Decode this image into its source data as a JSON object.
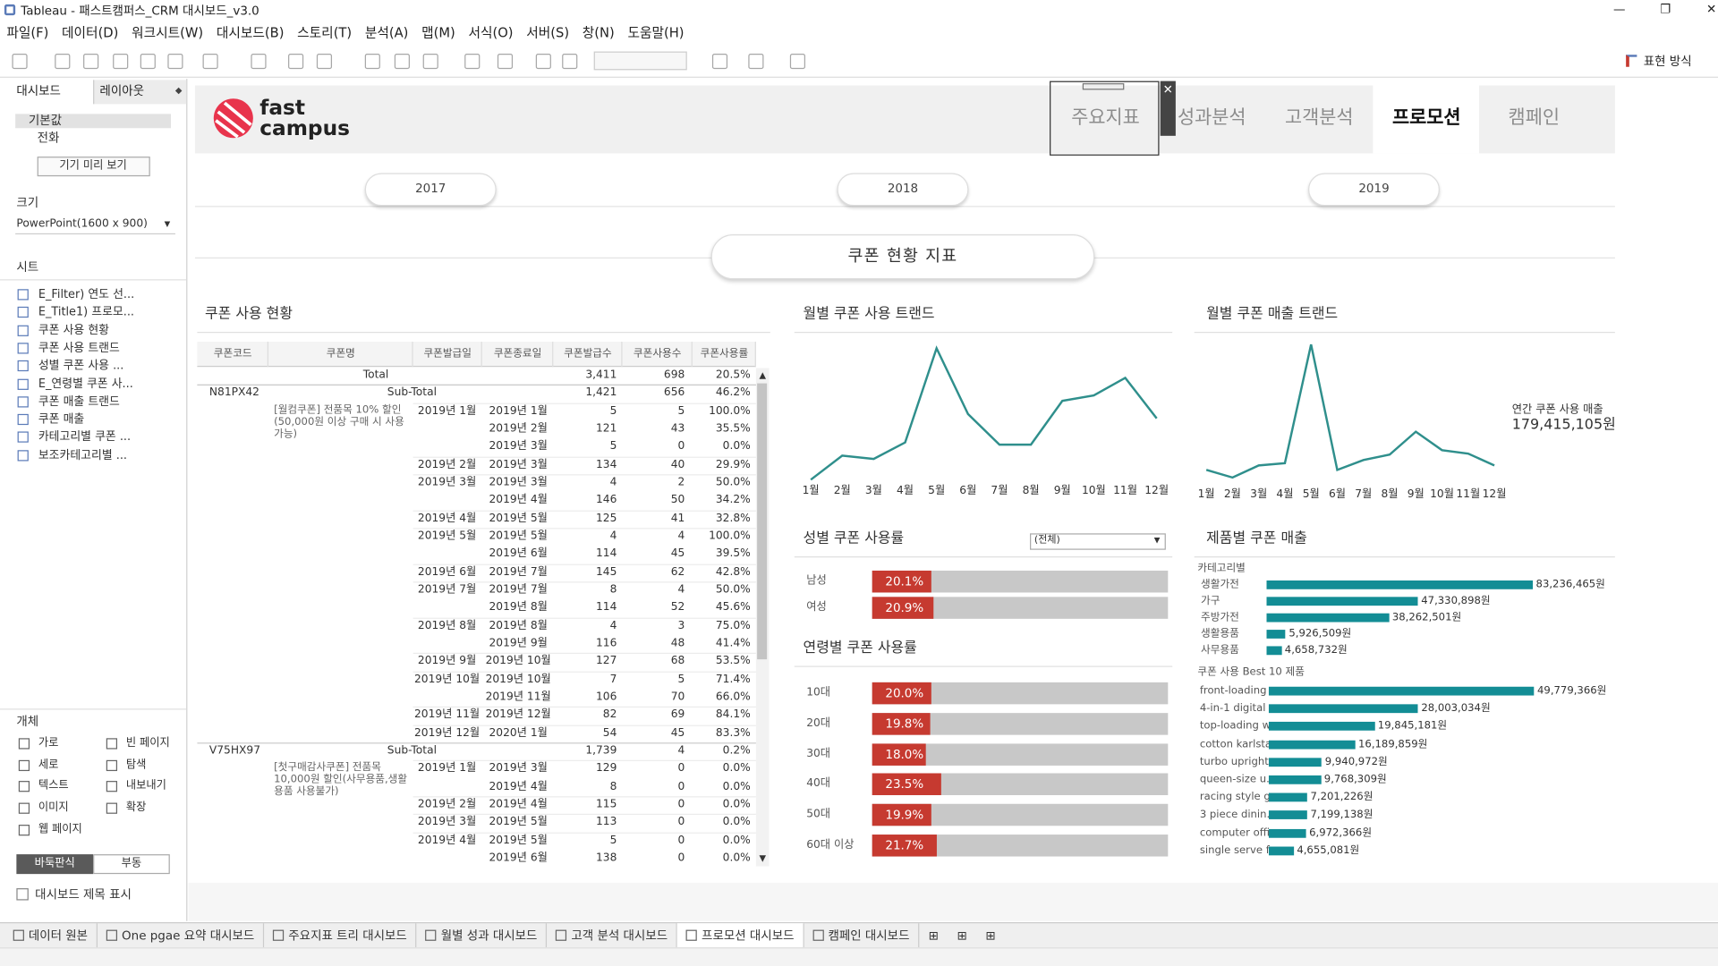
{
  "window": {
    "title": "Tableau - 패스트캠퍼스_CRM 대시보드_v3.0"
  },
  "menu": [
    "파일(F)",
    "데이터(D)",
    "워크시트(W)",
    "대시보드(B)",
    "스토리(T)",
    "분석(A)",
    "맵(M)",
    "서식(O)",
    "서버(S)",
    "창(N)",
    "도움말(H)"
  ],
  "toolbar": {
    "show_me": "표현 방식"
  },
  "side_panel": {
    "tabs": [
      "대시보드",
      "레이아웃"
    ],
    "device": [
      "기본값",
      "전화"
    ],
    "preview_button": "기기 미리 보기",
    "size_heading": "크기",
    "size_value": "PowerPoint(1600 x 900)",
    "sheets_heading": "시트",
    "sheets": [
      "E_Filter) 연도 선...",
      "E_Title1) 프로모...",
      "쿠폰 사용 현황",
      "쿠폰 사용 트랜드",
      "성별 쿠폰 사용 ...",
      "E_연령별 쿠폰 사...",
      "쿠폰 매출 트랜드",
      "쿠폰 매출",
      "카테고리별 쿠폰 ...",
      "보조카테고리별 ..."
    ],
    "objects_heading": "개체",
    "objects": [
      "가로",
      "빈 페이지",
      "세로",
      "탐색",
      "텍스트",
      "내보내기",
      "이미지",
      "확장",
      "웹 페이지"
    ],
    "layout_modes": [
      "바둑판식",
      "부동"
    ],
    "show_title": "대시보드 제목 표시"
  },
  "dashboard": {
    "logo": [
      "fast",
      "campus"
    ],
    "nav": [
      "주요지표",
      "성과분석",
      "고객분석",
      "프로모션",
      "캠페인"
    ],
    "years": [
      "2017",
      "2018",
      "2019"
    ],
    "section_title": "쿠폰 현황 지표"
  },
  "coupon_table": {
    "title": "쿠폰 사용 현황",
    "headers": [
      "쿠폰코드",
      "쿠폰명",
      "쿠폰발급일",
      "쿠폰종료일",
      "쿠폰발급수",
      "쿠폰사용수",
      "쿠폰사용률"
    ],
    "total": [
      "Total",
      "3,411",
      "698",
      "20.5%"
    ],
    "groups": [
      {
        "code": "N81PX42",
        "subtotal": [
          "Sub-Total",
          "1,421",
          "656",
          "46.2%"
        ],
        "name": "[월컴쿠폰] 전품목 10% 할인(50,000원 이상 구매 시 사용가능)",
        "rows": [
          [
            "2019년 1월",
            "2019년 1월",
            "5",
            "5",
            "100.0%"
          ],
          [
            null,
            "2019년 2월",
            "121",
            "43",
            "35.5%"
          ],
          [
            null,
            "2019년 3월",
            "5",
            "0",
            "0.0%"
          ],
          [
            "2019년 2월",
            "2019년 3월",
            "134",
            "40",
            "29.9%"
          ],
          [
            "2019년 3월",
            "2019년 3월",
            "4",
            "2",
            "50.0%"
          ],
          [
            null,
            "2019년 4월",
            "146",
            "50",
            "34.2%"
          ],
          [
            "2019년 4월",
            "2019년 5월",
            "125",
            "41",
            "32.8%"
          ],
          [
            "2019년 5월",
            "2019년 5월",
            "4",
            "4",
            "100.0%"
          ],
          [
            null,
            "2019년 6월",
            "114",
            "45",
            "39.5%"
          ],
          [
            "2019년 6월",
            "2019년 7월",
            "145",
            "62",
            "42.8%"
          ],
          [
            "2019년 7월",
            "2019년 7월",
            "8",
            "4",
            "50.0%"
          ],
          [
            null,
            "2019년 8월",
            "114",
            "52",
            "45.6%"
          ],
          [
            "2019년 8월",
            "2019년 8월",
            "4",
            "3",
            "75.0%"
          ],
          [
            null,
            "2019년 9월",
            "116",
            "48",
            "41.4%"
          ],
          [
            "2019년 9월",
            "2019년 10월",
            "127",
            "68",
            "53.5%"
          ],
          [
            "2019년 10월",
            "2019년 10월",
            "7",
            "5",
            "71.4%"
          ],
          [
            null,
            "2019년 11월",
            "106",
            "70",
            "66.0%"
          ],
          [
            "2019년 11월",
            "2019년 12월",
            "82",
            "69",
            "84.1%"
          ],
          [
            "2019년 12월",
            "2020년 1월",
            "54",
            "45",
            "83.3%"
          ]
        ]
      },
      {
        "code": "V75HX97",
        "subtotal": [
          "Sub-Total",
          "1,739",
          "4",
          "0.2%"
        ],
        "name": "[첫구매감사쿠폰] 전품목 10,000원 할인(사무용품,생활용품 사용불가)",
        "rows": [
          [
            "2019년 1월",
            "2019년 3월",
            "129",
            "0",
            "0.0%"
          ],
          [
            null,
            "2019년 4월",
            "8",
            "0",
            "0.0%"
          ],
          [
            "2019년 2월",
            "2019년 4월",
            "115",
            "0",
            "0.0%"
          ],
          [
            "2019년 3월",
            "2019년 5월",
            "113",
            "0",
            "0.0%"
          ],
          [
            "2019년 4월",
            "2019년 5월",
            "5",
            "0",
            "0.0%"
          ],
          [
            null,
            "2019년 6월",
            "138",
            "0",
            "0.0%"
          ]
        ]
      }
    ]
  },
  "chart_data": [
    {
      "type": "line",
      "title": "월별 쿠폰 사용 트랜드",
      "categories": [
        "1월",
        "2월",
        "3월",
        "4월",
        "5월",
        "6월",
        "7월",
        "8월",
        "9월",
        "10월",
        "11월",
        "12월"
      ],
      "values": [
        7,
        29,
        26,
        41,
        127,
        67,
        39,
        39,
        79,
        84,
        100,
        63
      ],
      "color": "#2f8f8c",
      "ylim": [
        0,
        135
      ]
    },
    {
      "type": "line",
      "title": "월별 쿠폰 매출 트랜드",
      "categories": [
        "1월",
        "2월",
        "3월",
        "4월",
        "5월",
        "6월",
        "7월",
        "8월",
        "9월",
        "10월",
        "11월",
        "12월"
      ],
      "values": [
        7100000,
        4000000,
        8900000,
        9800000,
        58000000,
        7100000,
        11100000,
        13300000,
        22600000,
        15100000,
        13700000,
        8900000
      ],
      "color": "#2f8f8c",
      "ylim": [
        0,
        60000000
      ],
      "annotation": [
        "연간 쿠폰 사용 매출",
        "179,415,105원"
      ]
    },
    {
      "type": "hbar",
      "title": "성별 쿠폰 사용률",
      "filter": "(전체)",
      "categories": [
        "남성",
        "여성"
      ],
      "values": [
        20.1,
        20.9
      ],
      "value_labels": [
        "20.1%",
        "20.9%"
      ],
      "xlim": [
        0,
        100
      ],
      "color": "#c63a30",
      "track": "#c8c8c8"
    },
    {
      "type": "hbar",
      "title": "연령별 쿠폰 사용률",
      "categories": [
        "10대",
        "20대",
        "30대",
        "40대",
        "50대",
        "60대 이상"
      ],
      "values": [
        20.0,
        19.8,
        18.0,
        23.5,
        19.9,
        21.7
      ],
      "value_labels": [
        "20.0%",
        "19.8%",
        "18.0%",
        "23.5%",
        "19.9%",
        "21.7%"
      ],
      "xlim": [
        0,
        100
      ],
      "color": "#c63a30",
      "track": "#c8c8c8"
    },
    {
      "type": "hbar",
      "title": "제품별 쿠폰 매출",
      "subtitle": "카테고리별",
      "categories": [
        "생활가전",
        "가구",
        "주방가전",
        "생활용품",
        "사무용품"
      ],
      "values": [
        83236465,
        47330898,
        38262501,
        5926509,
        4658732
      ],
      "value_labels": [
        "83,236,465원",
        "47,330,898원",
        "38,262,501원",
        "5,926,509원",
        "4,658,732원"
      ],
      "xlim": [
        0,
        85000000
      ],
      "color": "#138d95"
    },
    {
      "type": "hbar",
      "subtitle": "쿠폰 사용 Best 10 제품",
      "categories": [
        "front-loading ..",
        "4-in-1 digital ..",
        "top-loading w..",
        "cotton karlsta..",
        "turbo upright ..",
        "queen-size u..",
        "racing style g..",
        "3 piece dinin..",
        "computer offi..",
        "single serve f.."
      ],
      "values": [
        49779366,
        28003034,
        19845181,
        16189859,
        9940972,
        9768309,
        7201226,
        7199138,
        6972366,
        4655081
      ],
      "value_labels": [
        "49,779,366원",
        "28,003,034원",
        "19,845,181원",
        "16,189,859원",
        "9,940,972원",
        "9,768,309원",
        "7,201,226원",
        "7,199,138원",
        "6,972,366원",
        "4,655,081원"
      ],
      "xlim": [
        0,
        51000000
      ],
      "color": "#138d95"
    }
  ],
  "bottom_tabs": [
    "데이터 원본",
    "One pgae 요약 대시보드",
    "주요지표 트리 대시보드",
    "월별 성과 대시보드",
    "고객 분석 대시보드",
    "프로모션 대시보드",
    "캠페인 대시보드"
  ]
}
